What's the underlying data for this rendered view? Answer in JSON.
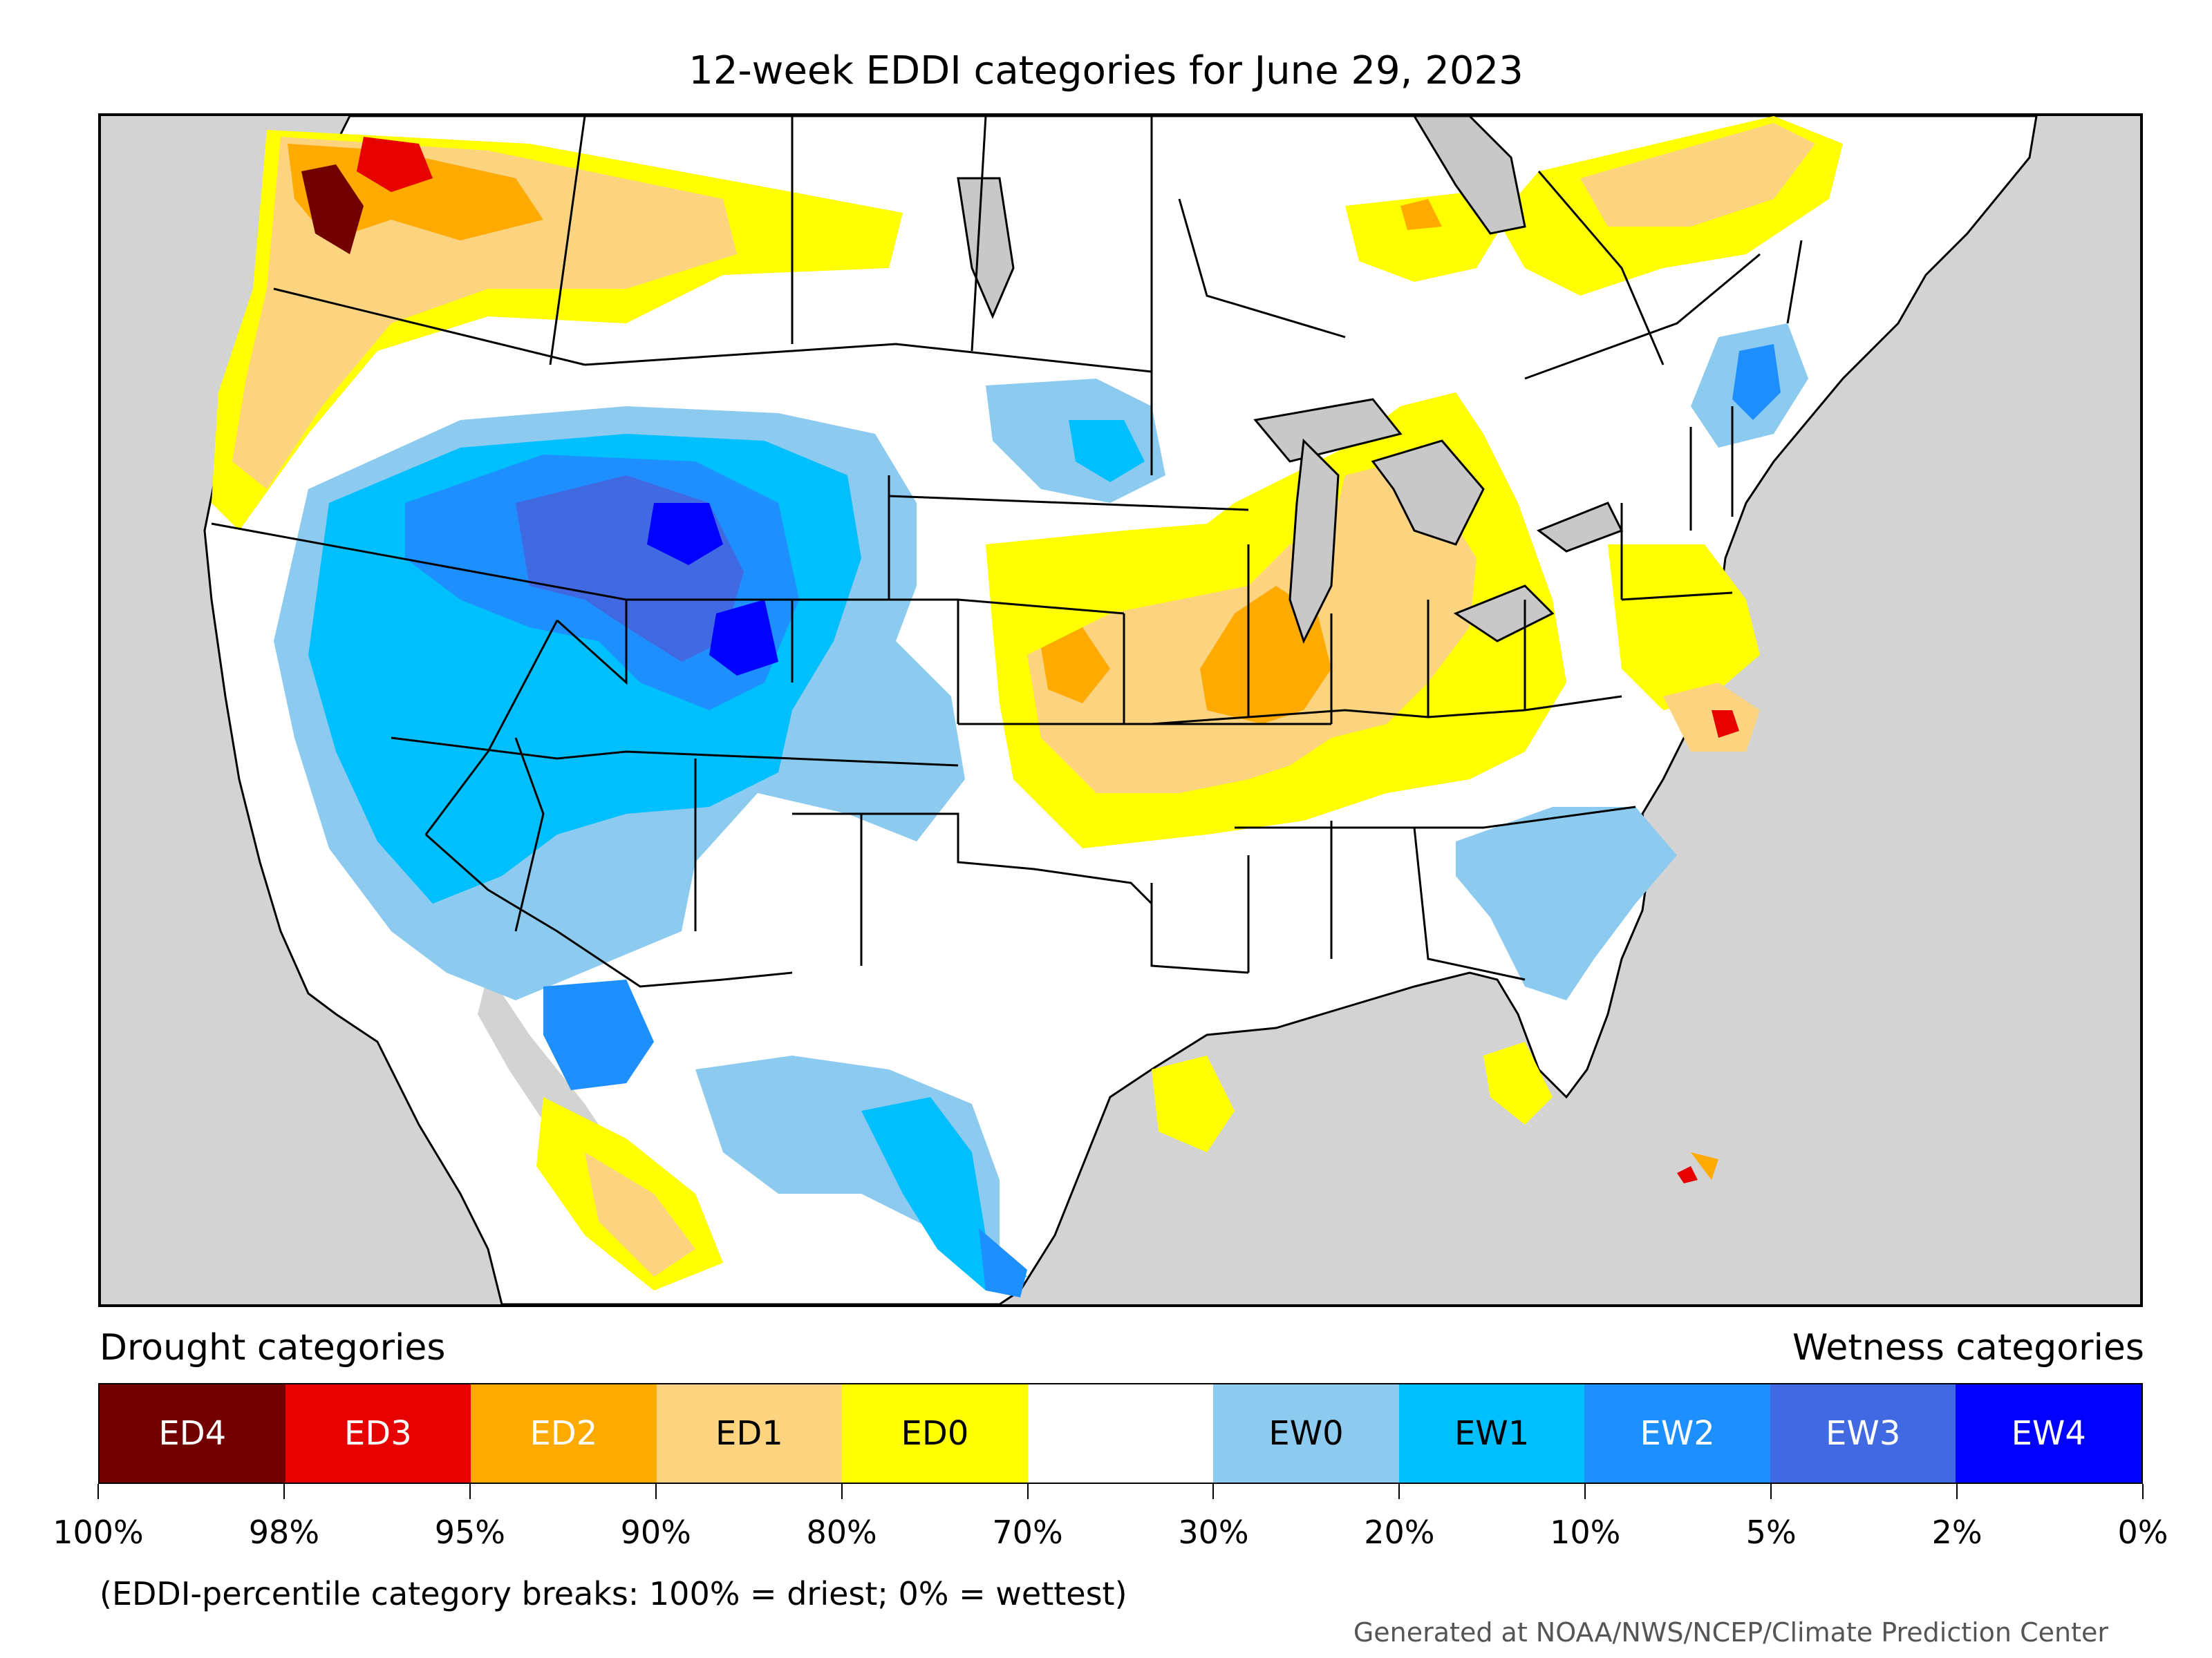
{
  "title": "12-week EDDI categories for June 29, 2023",
  "drought_heading": "Drought categories",
  "wetness_heading": "Wetness categories",
  "legend": [
    {
      "label": "ED4",
      "color": "#730000",
      "text_color": "#ffffff"
    },
    {
      "label": "ED3",
      "color": "#e60000",
      "text_color": "#ffffff"
    },
    {
      "label": "ED2",
      "color": "#ffaa00",
      "text_color": "#ffffff"
    },
    {
      "label": "ED1",
      "color": "#fcd37f",
      "text_color": "#000000"
    },
    {
      "label": "ED0",
      "color": "#ffff00",
      "text_color": "#000000"
    },
    {
      "label": "",
      "color": "#ffffff",
      "text_color": "#000000"
    },
    {
      "label": "EW0",
      "color": "#8ccbef",
      "text_color": "#000000"
    },
    {
      "label": "EW1",
      "color": "#00bfff",
      "text_color": "#000000"
    },
    {
      "label": "EW2",
      "color": "#1e8fff",
      "text_color": "#ffffff"
    },
    {
      "label": "EW3",
      "color": "#4169e1",
      "text_color": "#ffffff"
    },
    {
      "label": "EW4",
      "color": "#0000ff",
      "text_color": "#ffffff"
    }
  ],
  "ticks": [
    "100%",
    "98%",
    "95%",
    "90%",
    "80%",
    "70%",
    "30%",
    "20%",
    "10%",
    "5%",
    "2%",
    "0%"
  ],
  "note": "(EDDI-percentile category breaks: 100% = driest; 0% = wettest)",
  "credit": "Generated at NOAA/NWS/NCEP/Climate Prediction Center",
  "map_colors": {
    "ocean": "#d3d3d3",
    "land": "#ffffff",
    "lakes": "#c8c8c8",
    "border": "#000000"
  }
}
